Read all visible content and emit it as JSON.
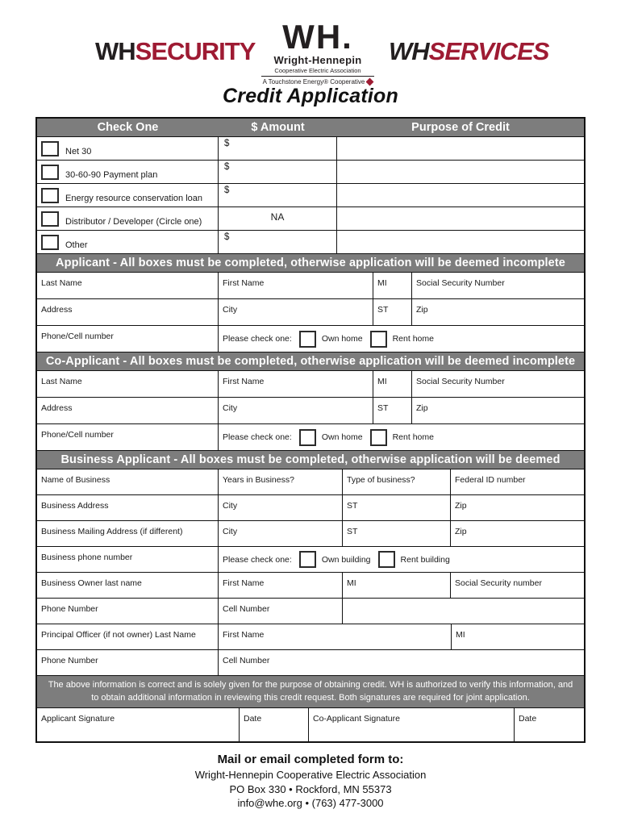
{
  "page": {
    "title": "Credit Application"
  },
  "colors": {
    "brand_maroon": "#9e1b33",
    "logo_black": "#231f20",
    "bar_gray": "#7d7d7d",
    "border": "#111111"
  },
  "logos": {
    "security": {
      "prefix": "WH",
      "suffix": "SECURITY"
    },
    "center": {
      "mark": "WH.",
      "name": "Wright-Hennepin",
      "sub": "Cooperative Electric Association",
      "tagline": "A Touchstone Energy® Cooperative"
    },
    "services": {
      "prefix": "WH",
      "suffix": "SERVICES"
    }
  },
  "credit_table": {
    "headers": {
      "check_one": "Check One",
      "amount": "$ Amount",
      "purpose": "Purpose of Credit"
    },
    "rows": [
      {
        "label": "Net 30",
        "amount": "$"
      },
      {
        "label": "30-60-90 Payment plan",
        "amount": "$"
      },
      {
        "label": "Energy resource conservation loan",
        "amount": "$"
      },
      {
        "label": "Distributor / Developer (Circle one)",
        "amount": "NA"
      },
      {
        "label": "Other",
        "amount": "$"
      }
    ]
  },
  "applicant": {
    "header": "Applicant - All boxes must be completed, otherwise application will be deemed incomplete",
    "last_name": "Last Name",
    "first_name": "First Name",
    "mi": "MI",
    "ssn": "Social Security Number",
    "address": "Address",
    "city": "City",
    "st": "ST",
    "zip": "Zip",
    "phone": "Phone/Cell number",
    "check_prompt": "Please check one:",
    "own": "Own home",
    "rent": "Rent home"
  },
  "co_applicant": {
    "header": "Co-Applicant - All boxes must be completed, otherwise application will be deemed incomplete",
    "last_name": "Last Name",
    "first_name": "First Name",
    "mi": "MI",
    "ssn": "Social Security Number",
    "address": "Address",
    "city": "City",
    "st": "ST",
    "zip": "Zip",
    "phone": "Phone/Cell number",
    "check_prompt": "Please check one:",
    "own": "Own home",
    "rent": "Rent home"
  },
  "business": {
    "header": "Business Applicant - All boxes must be completed, otherwise application will be deemed incomplete",
    "name": "Name of Business",
    "years": "Years in Business?",
    "type": "Type of business?",
    "fed_id": "Federal ID number",
    "address": "Business Address",
    "city": "City",
    "st": "ST",
    "zip": "Zip",
    "mailing_address": "Business Mailing Address (if different)",
    "city2": "City",
    "st2": "ST",
    "zip2": "Zip",
    "phone": "Business phone number",
    "check_prompt": "Please check one:",
    "own": "Own building",
    "rent": "Rent building",
    "owner_last_name": "Business Owner last name",
    "first_name": "First Name",
    "mi": "MI",
    "ssn": "Social Security number",
    "phone_number": "Phone Number",
    "cell_number": "Cell Number",
    "principal": "Principal Officer (if not owner) Last Name",
    "principal_first": "First Name",
    "principal_mi": "MI",
    "phone_number2": "Phone Number",
    "cell_number2": "Cell Number"
  },
  "statement": "The above information is correct and is solely given for the purpose of obtaining credit. WH is authorized to verify this information, and to obtain additional information in reviewing this credit request. Both signatures are required for joint application.",
  "signature": {
    "applicant": "Applicant Signature",
    "date1": "Date",
    "co_applicant": "Co-Applicant Signature",
    "date2": "Date"
  },
  "footer": {
    "line1": "Mail or email completed form to:",
    "line2": "Wright-Hennepin Cooperative Electric Association",
    "line3": "PO Box 330  •  Rockford, MN 55373",
    "line4": "info@whe.org  •  (763) 477-3000"
  }
}
